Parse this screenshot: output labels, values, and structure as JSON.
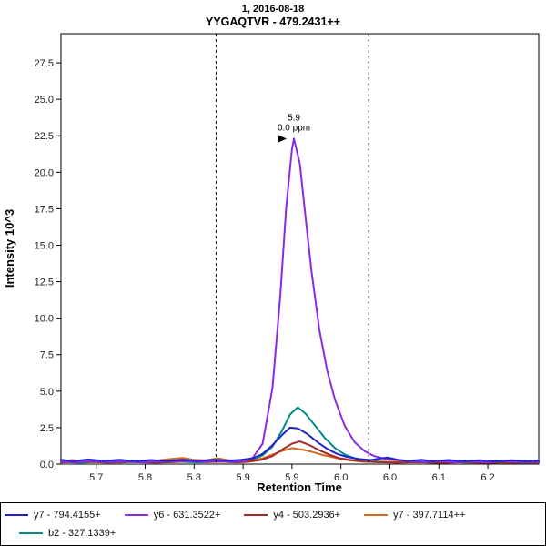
{
  "chart_data": {
    "type": "line",
    "title": "1, 2016-08-18",
    "subtitle": "YYGAQTVR - 479.2431++",
    "xlabel": "Retention Time",
    "ylabel": "Intensity 10^3",
    "xlim": [
      5.655,
      6.265
    ],
    "ylim": [
      0,
      29.5
    ],
    "grid": false,
    "legend_position": "bottom",
    "yticks": [
      {
        "pos": 0.0,
        "label": "0.0"
      },
      {
        "pos": 2.5,
        "label": "2.5"
      },
      {
        "pos": 5.0,
        "label": "5.0"
      },
      {
        "pos": 7.5,
        "label": "7.5"
      },
      {
        "pos": 10.0,
        "label": "10.0"
      },
      {
        "pos": 12.5,
        "label": "12.5"
      },
      {
        "pos": 15.0,
        "label": "15.0"
      },
      {
        "pos": 17.5,
        "label": "17.5"
      },
      {
        "pos": 20.0,
        "label": "20.0"
      },
      {
        "pos": 22.5,
        "label": "22.5"
      },
      {
        "pos": 25.0,
        "label": "25.0"
      },
      {
        "pos": 27.5,
        "label": "27.5"
      }
    ],
    "xticks": [
      {
        "pos": 5.7,
        "label": "5.7"
      },
      {
        "pos": 5.7625,
        "label": "5.8"
      },
      {
        "pos": 5.825,
        "label": "5.8"
      },
      {
        "pos": 5.8875,
        "label": "5.9"
      },
      {
        "pos": 5.95,
        "label": "5.9"
      },
      {
        "pos": 6.0125,
        "label": "6.0"
      },
      {
        "pos": 6.075,
        "label": "6.0"
      },
      {
        "pos": 6.1375,
        "label": "6.1"
      },
      {
        "pos": 6.2,
        "label": "6.2"
      }
    ],
    "integration_boundaries": [
      5.853,
      6.048
    ],
    "annotation": {
      "x": 5.9525,
      "y": 22.3,
      "rt_label": "5.9",
      "ppm_label": "0.0 ppm",
      "color": "#8A2BE2",
      "arrow_color": "#000000"
    },
    "boundary_color": "#000000",
    "legend_rows": [
      [
        0,
        1,
        2,
        3
      ],
      [
        4
      ]
    ],
    "series": [
      {
        "id": "y7",
        "name": "y7 - 794.4155+",
        "color": "#2222CC",
        "points": [
          [
            5.655,
            0.3
          ],
          [
            5.67,
            0.2
          ],
          [
            5.69,
            0.32
          ],
          [
            5.71,
            0.22
          ],
          [
            5.73,
            0.3
          ],
          [
            5.75,
            0.2
          ],
          [
            5.77,
            0.28
          ],
          [
            5.79,
            0.2
          ],
          [
            5.81,
            0.3
          ],
          [
            5.83,
            0.22
          ],
          [
            5.85,
            0.3
          ],
          [
            5.87,
            0.24
          ],
          [
            5.885,
            0.3
          ],
          [
            5.9,
            0.4
          ],
          [
            5.9125,
            0.7
          ],
          [
            5.925,
            1.3
          ],
          [
            5.9375,
            2.0
          ],
          [
            5.9475,
            2.5
          ],
          [
            5.9575,
            2.45
          ],
          [
            5.97,
            2.05
          ],
          [
            5.9825,
            1.5
          ],
          [
            5.995,
            1.05
          ],
          [
            6.0075,
            0.7
          ],
          [
            6.02,
            0.5
          ],
          [
            6.035,
            0.35
          ],
          [
            6.05,
            0.28
          ],
          [
            6.0625,
            0.38
          ],
          [
            6.0725,
            0.45
          ],
          [
            6.085,
            0.3
          ],
          [
            6.1,
            0.22
          ],
          [
            6.115,
            0.3
          ],
          [
            6.13,
            0.2
          ],
          [
            6.15,
            0.28
          ],
          [
            6.17,
            0.2
          ],
          [
            6.19,
            0.26
          ],
          [
            6.21,
            0.18
          ],
          [
            6.23,
            0.26
          ],
          [
            6.25,
            0.2
          ],
          [
            6.265,
            0.24
          ]
        ]
      },
      {
        "id": "y6",
        "name": "y6 - 631.3522+",
        "color": "#8A2BE2",
        "points": [
          [
            5.655,
            0.18
          ],
          [
            5.675,
            0.12
          ],
          [
            5.695,
            0.2
          ],
          [
            5.715,
            0.13
          ],
          [
            5.735,
            0.18
          ],
          [
            5.76,
            0.12
          ],
          [
            5.785,
            0.17
          ],
          [
            5.81,
            0.22
          ],
          [
            5.835,
            0.14
          ],
          [
            5.855,
            0.2
          ],
          [
            5.875,
            0.15
          ],
          [
            5.89,
            0.22
          ],
          [
            5.9,
            0.45
          ],
          [
            5.9125,
            1.4
          ],
          [
            5.925,
            5.2
          ],
          [
            5.935,
            11.5
          ],
          [
            5.9425,
            17.5
          ],
          [
            5.95,
            21.6
          ],
          [
            5.9525,
            22.3
          ],
          [
            5.96,
            20.6
          ],
          [
            5.9675,
            16.8
          ],
          [
            5.975,
            13.2
          ],
          [
            5.985,
            9.2
          ],
          [
            5.995,
            6.4
          ],
          [
            6.005,
            4.4
          ],
          [
            6.0175,
            2.6
          ],
          [
            6.03,
            1.5
          ],
          [
            6.0425,
            0.9
          ],
          [
            6.055,
            0.55
          ],
          [
            6.07,
            0.35
          ],
          [
            6.085,
            0.28
          ],
          [
            6.1,
            0.2
          ],
          [
            6.12,
            0.14
          ],
          [
            6.14,
            0.2
          ],
          [
            6.16,
            0.12
          ],
          [
            6.18,
            0.18
          ],
          [
            6.2,
            0.12
          ],
          [
            6.22,
            0.2
          ],
          [
            6.24,
            0.13
          ],
          [
            6.265,
            0.16
          ]
        ]
      },
      {
        "id": "y4",
        "name": "y4 - 503.2936+",
        "color": "#A52A2A",
        "points": [
          [
            5.655,
            0.12
          ],
          [
            5.685,
            0.16
          ],
          [
            5.715,
            0.1
          ],
          [
            5.745,
            0.15
          ],
          [
            5.775,
            0.1
          ],
          [
            5.8,
            0.14
          ],
          [
            5.82,
            0.2
          ],
          [
            5.84,
            0.13
          ],
          [
            5.86,
            0.16
          ],
          [
            5.88,
            0.12
          ],
          [
            5.895,
            0.16
          ],
          [
            5.91,
            0.28
          ],
          [
            5.925,
            0.55
          ],
          [
            5.9375,
            1.0
          ],
          [
            5.95,
            1.4
          ],
          [
            5.96,
            1.55
          ],
          [
            5.9725,
            1.3
          ],
          [
            5.985,
            0.95
          ],
          [
            5.9975,
            0.65
          ],
          [
            6.01,
            0.42
          ],
          [
            6.025,
            0.28
          ],
          [
            6.04,
            0.18
          ],
          [
            6.06,
            0.13
          ],
          [
            6.085,
            0.1
          ],
          [
            6.11,
            0.14
          ],
          [
            6.14,
            0.09
          ],
          [
            6.17,
            0.13
          ],
          [
            6.2,
            0.09
          ],
          [
            6.23,
            0.12
          ],
          [
            6.265,
            0.1
          ]
        ]
      },
      {
        "id": "y7pp",
        "name": "y7 - 397.7114++",
        "color": "#D2691E",
        "points": [
          [
            5.655,
            0.2
          ],
          [
            5.67,
            0.28
          ],
          [
            5.685,
            0.18
          ],
          [
            5.7,
            0.24
          ],
          [
            5.72,
            0.16
          ],
          [
            5.74,
            0.22
          ],
          [
            5.76,
            0.17
          ],
          [
            5.78,
            0.26
          ],
          [
            5.795,
            0.35
          ],
          [
            5.81,
            0.42
          ],
          [
            5.825,
            0.3
          ],
          [
            5.84,
            0.26
          ],
          [
            5.855,
            0.4
          ],
          [
            5.868,
            0.28
          ],
          [
            5.885,
            0.2
          ],
          [
            5.9,
            0.25
          ],
          [
            5.9125,
            0.4
          ],
          [
            5.925,
            0.65
          ],
          [
            5.9375,
            0.9
          ],
          [
            5.95,
            1.1
          ],
          [
            5.9625,
            1.0
          ],
          [
            5.975,
            0.85
          ],
          [
            5.9875,
            0.65
          ],
          [
            6.0,
            0.5
          ],
          [
            6.0125,
            0.35
          ],
          [
            6.025,
            0.25
          ],
          [
            6.04,
            0.18
          ],
          [
            6.06,
            0.13
          ],
          [
            6.085,
            0.17
          ],
          [
            6.11,
            0.12
          ],
          [
            6.14,
            0.16
          ],
          [
            6.17,
            0.11
          ],
          [
            6.2,
            0.15
          ],
          [
            6.23,
            0.1
          ],
          [
            6.265,
            0.13
          ]
        ]
      },
      {
        "id": "b2",
        "name": "b2 - 327.1339+",
        "color": "#008B8B",
        "points": [
          [
            5.655,
            0.15
          ],
          [
            5.68,
            0.1
          ],
          [
            5.705,
            0.16
          ],
          [
            5.73,
            0.11
          ],
          [
            5.755,
            0.17
          ],
          [
            5.78,
            0.12
          ],
          [
            5.805,
            0.16
          ],
          [
            5.83,
            0.12
          ],
          [
            5.855,
            0.18
          ],
          [
            5.875,
            0.13
          ],
          [
            5.89,
            0.2
          ],
          [
            5.9,
            0.3
          ],
          [
            5.9125,
            0.6
          ],
          [
            5.925,
            1.2
          ],
          [
            5.9375,
            2.3
          ],
          [
            5.9475,
            3.4
          ],
          [
            5.9575,
            3.9
          ],
          [
            5.9675,
            3.45
          ],
          [
            5.98,
            2.6
          ],
          [
            5.9925,
            1.75
          ],
          [
            6.005,
            1.1
          ],
          [
            6.0175,
            0.65
          ],
          [
            6.03,
            0.4
          ],
          [
            6.045,
            0.25
          ],
          [
            6.06,
            0.17
          ],
          [
            6.08,
            0.12
          ],
          [
            6.105,
            0.15
          ],
          [
            6.13,
            0.1
          ],
          [
            6.155,
            0.14
          ],
          [
            6.18,
            0.1
          ],
          [
            6.21,
            0.13
          ],
          [
            6.24,
            0.1
          ],
          [
            6.265,
            0.12
          ]
        ]
      }
    ]
  }
}
